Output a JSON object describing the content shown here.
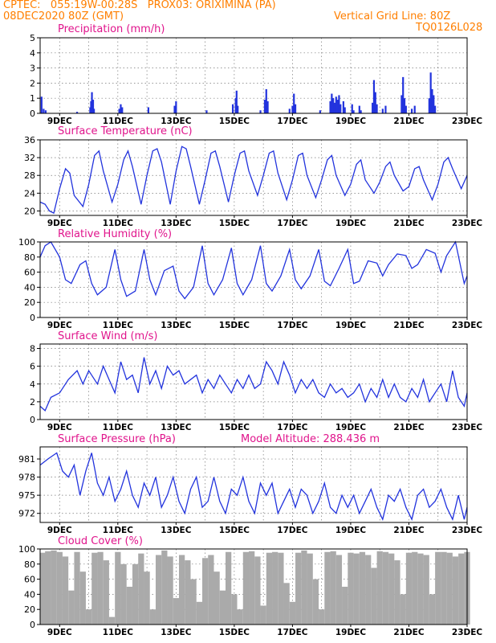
{
  "header": {
    "line1": "CPTEC:   055:19W-00:28S   PROX03: ORIXIMINA (PA)",
    "line2": "08DEC2020 80Z (GMT)",
    "grid_note": "Vertical Grid Line: 80Z",
    "code": "TQ0126L028",
    "model_altitude": "Model Altitude: 288.436 m"
  },
  "colors": {
    "header": "#ff7f00",
    "title": "#e0148c",
    "series": "#2233dd",
    "cloud": "#aaaaaa",
    "grid": "#777777"
  },
  "x_axis": {
    "day_labels": [
      "9DEC",
      "11DEC",
      "13DEC",
      "15DEC",
      "17DEC",
      "19DEC",
      "21DEC",
      "23DEC"
    ],
    "label_days": [
      9,
      11,
      13,
      15,
      17,
      19,
      21,
      23
    ],
    "grid_days": [
      9,
      10,
      11,
      12,
      13,
      14,
      15,
      16,
      17,
      18,
      19,
      20,
      21,
      22
    ],
    "start_day": 8.33,
    "end_day": 23.0
  },
  "chart_data": [
    {
      "type": "bar",
      "title": "Precipitation (mm/h)",
      "ylim": [
        0,
        5
      ],
      "yticks": [
        0,
        1,
        2,
        3,
        4,
        5
      ],
      "x": [
        8.38,
        8.45,
        8.52,
        9.6,
        10.05,
        10.08,
        10.11,
        10.15,
        10.18,
        11.05,
        11.1,
        11.15,
        12.05,
        12.95,
        13.0,
        14.05,
        14.95,
        15.05,
        15.08,
        15.12,
        15.9,
        16.05,
        16.1,
        16.15,
        16.9,
        17.0,
        17.05,
        17.1,
        17.95,
        18.3,
        18.35,
        18.4,
        18.45,
        18.5,
        18.55,
        18.6,
        18.65,
        18.75,
        18.8,
        19.05,
        19.1,
        19.3,
        19.35,
        19.75,
        19.8,
        19.85,
        19.9,
        20.1,
        20.2,
        20.75,
        20.8,
        20.85,
        20.9,
        21.1,
        21.2,
        21.7,
        21.75,
        21.8,
        21.85,
        21.9
      ],
      "values": [
        1.1,
        0.3,
        0.2,
        0.1,
        0.4,
        0.8,
        1.4,
        0.9,
        0.3,
        0.3,
        0.6,
        0.4,
        0.4,
        0.5,
        0.8,
        0.2,
        0.6,
        1.0,
        1.5,
        0.5,
        0.2,
        0.9,
        1.6,
        0.8,
        0.3,
        0.5,
        1.3,
        0.6,
        0.2,
        0.8,
        1.3,
        1.0,
        0.7,
        1.1,
        0.9,
        1.2,
        0.6,
        0.8,
        0.4,
        0.6,
        0.2,
        0.5,
        0.2,
        0.7,
        2.2,
        1.4,
        0.6,
        0.3,
        0.5,
        1.2,
        2.4,
        1.0,
        0.5,
        0.3,
        0.5,
        1.0,
        2.7,
        1.6,
        1.2,
        0.5
      ]
    },
    {
      "type": "line",
      "title": "Surface Temperature (nC)",
      "ylim": [
        19,
        36
      ],
      "yticks": [
        20,
        24,
        28,
        32,
        36
      ],
      "x": [
        8.33,
        8.5,
        8.65,
        8.8,
        9.0,
        9.2,
        9.35,
        9.5,
        9.8,
        10.0,
        10.2,
        10.35,
        10.5,
        10.8,
        11.0,
        11.2,
        11.35,
        11.5,
        11.8,
        12.0,
        12.2,
        12.35,
        12.5,
        12.8,
        13.0,
        13.2,
        13.35,
        13.5,
        13.8,
        14.0,
        14.2,
        14.35,
        14.5,
        14.8,
        15.0,
        15.2,
        15.35,
        15.5,
        15.8,
        16.0,
        16.2,
        16.35,
        16.5,
        16.8,
        17.0,
        17.2,
        17.35,
        17.5,
        17.8,
        18.0,
        18.2,
        18.35,
        18.5,
        18.8,
        19.0,
        19.2,
        19.35,
        19.5,
        19.8,
        20.0,
        20.2,
        20.35,
        20.5,
        20.8,
        21.0,
        21.2,
        21.35,
        21.5,
        21.8,
        22.0,
        22.2,
        22.35,
        22.5,
        22.8,
        23.0
      ],
      "values": [
        22,
        21.5,
        20.0,
        19.5,
        25,
        29.5,
        28.5,
        23.5,
        21,
        26,
        32.5,
        33.5,
        29,
        22,
        26,
        31.5,
        33.5,
        30,
        21.5,
        28,
        33.5,
        34,
        31,
        21.5,
        29,
        34.5,
        34,
        30,
        21.5,
        27,
        33,
        33.5,
        30,
        22,
        28,
        33,
        33.5,
        29,
        23.5,
        28,
        33,
        33.5,
        28.5,
        22.5,
        27,
        32.5,
        33,
        28,
        23,
        27,
        31.5,
        32.5,
        28,
        23.5,
        26,
        30.5,
        31.5,
        27,
        24,
        26.5,
        30,
        31,
        28,
        24.5,
        25.5,
        29.5,
        30,
        27,
        22.5,
        26,
        31,
        32,
        29.5,
        25,
        28
      ]
    },
    {
      "type": "line",
      "title": "Relative Humidity (%)",
      "ylim": [
        0,
        100
      ],
      "yticks": [
        0,
        20,
        40,
        60,
        80,
        100
      ],
      "x": [
        8.33,
        8.5,
        8.7,
        9.0,
        9.2,
        9.4,
        9.7,
        9.9,
        10.1,
        10.3,
        10.6,
        10.9,
        11.1,
        11.3,
        11.6,
        11.9,
        12.1,
        12.3,
        12.6,
        12.9,
        13.1,
        13.3,
        13.6,
        13.9,
        14.1,
        14.3,
        14.6,
        14.9,
        15.1,
        15.3,
        15.6,
        15.9,
        16.1,
        16.3,
        16.6,
        16.9,
        17.1,
        17.3,
        17.6,
        17.9,
        18.1,
        18.3,
        18.6,
        18.9,
        19.1,
        19.3,
        19.6,
        19.9,
        20.1,
        20.3,
        20.6,
        20.9,
        21.1,
        21.3,
        21.6,
        21.9,
        22.1,
        22.3,
        22.6,
        22.9,
        23.0
      ],
      "values": [
        80,
        95,
        100,
        80,
        50,
        45,
        70,
        75,
        45,
        30,
        40,
        90,
        50,
        28,
        35,
        90,
        50,
        30,
        62,
        68,
        35,
        25,
        40,
        95,
        45,
        30,
        50,
        92,
        45,
        30,
        50,
        95,
        45,
        35,
        55,
        90,
        50,
        38,
        55,
        90,
        48,
        42,
        65,
        90,
        45,
        48,
        75,
        72,
        55,
        70,
        84,
        82,
        65,
        70,
        90,
        85,
        60,
        82,
        100,
        45,
        55
      ]
    },
    {
      "type": "line",
      "title": "Surface Wind (m/s)",
      "ylim": [
        0,
        8.5
      ],
      "yticks": [
        0,
        2,
        4,
        6,
        8
      ],
      "x": [
        8.33,
        8.5,
        8.7,
        9.0,
        9.3,
        9.6,
        9.8,
        10.0,
        10.3,
        10.5,
        10.7,
        10.9,
        11.1,
        11.3,
        11.5,
        11.7,
        11.9,
        12.1,
        12.3,
        12.5,
        12.7,
        12.9,
        13.1,
        13.3,
        13.5,
        13.7,
        13.9,
        14.1,
        14.3,
        14.5,
        14.7,
        14.9,
        15.1,
        15.3,
        15.5,
        15.7,
        15.9,
        16.1,
        16.3,
        16.5,
        16.7,
        16.9,
        17.1,
        17.3,
        17.5,
        17.7,
        17.9,
        18.1,
        18.3,
        18.5,
        18.7,
        18.9,
        19.1,
        19.3,
        19.5,
        19.7,
        19.9,
        20.1,
        20.3,
        20.5,
        20.7,
        20.9,
        21.1,
        21.3,
        21.5,
        21.7,
        21.9,
        22.1,
        22.3,
        22.5,
        22.7,
        22.9,
        23.0
      ],
      "values": [
        1.5,
        1.0,
        2.5,
        3.0,
        4.5,
        5.5,
        4.0,
        5.5,
        4.0,
        6.0,
        4.5,
        3.0,
        6.5,
        4.5,
        5.0,
        3.0,
        7.0,
        4.0,
        5.5,
        3.5,
        6.0,
        5.0,
        5.5,
        4.0,
        4.5,
        5.0,
        3.0,
        4.5,
        3.5,
        5.0,
        4.0,
        3.0,
        4.5,
        3.5,
        5.0,
        3.5,
        4.0,
        6.5,
        5.5,
        4.0,
        6.5,
        5.0,
        3.0,
        4.5,
        3.5,
        4.5,
        3.0,
        2.5,
        4.0,
        3.0,
        3.5,
        2.5,
        3.0,
        4.0,
        2.0,
        3.5,
        2.5,
        4.5,
        2.5,
        4.0,
        2.5,
        2.0,
        3.5,
        2.5,
        4.5,
        2.0,
        3.0,
        4.0,
        2.0,
        5.5,
        2.5,
        1.5,
        3.0
      ]
    },
    {
      "type": "line",
      "title": "Surface Pressure (hPa)",
      "ylim": [
        970.5,
        983
      ],
      "yticks": [
        972,
        975,
        978,
        981
      ],
      "x": [
        8.33,
        8.6,
        8.9,
        9.1,
        9.3,
        9.5,
        9.7,
        9.9,
        10.1,
        10.3,
        10.5,
        10.7,
        10.9,
        11.1,
        11.3,
        11.5,
        11.7,
        11.9,
        12.1,
        12.3,
        12.5,
        12.7,
        12.9,
        13.1,
        13.3,
        13.5,
        13.7,
        13.9,
        14.1,
        14.3,
        14.5,
        14.7,
        14.9,
        15.1,
        15.3,
        15.5,
        15.7,
        15.9,
        16.1,
        16.3,
        16.5,
        16.7,
        16.9,
        17.1,
        17.3,
        17.5,
        17.7,
        17.9,
        18.1,
        18.3,
        18.5,
        18.7,
        18.9,
        19.1,
        19.3,
        19.5,
        19.7,
        19.9,
        20.1,
        20.3,
        20.5,
        20.7,
        20.9,
        21.1,
        21.3,
        21.5,
        21.7,
        21.9,
        22.1,
        22.3,
        22.5,
        22.7,
        22.9,
        23.0
      ],
      "values": [
        980,
        981,
        982,
        979,
        978,
        980,
        975,
        979,
        982,
        977,
        975,
        978,
        974,
        976,
        979,
        975,
        973,
        977,
        975,
        978,
        973,
        975,
        978,
        974,
        972,
        976,
        978,
        973,
        974,
        978,
        974,
        972,
        976,
        975,
        978,
        974,
        972,
        977,
        975,
        977,
        972,
        974,
        976,
        973,
        976,
        975,
        972,
        974,
        977,
        973,
        972,
        975,
        973,
        975,
        972,
        974,
        976,
        973,
        971,
        975,
        974,
        976,
        973,
        971,
        975,
        976,
        973,
        974,
        976,
        973,
        971,
        975,
        971,
        973
      ]
    },
    {
      "type": "bar",
      "title": "Cloud Cover (%)",
      "ylim": [
        0,
        100
      ],
      "yticks": [
        0,
        20,
        40,
        60,
        80,
        100
      ],
      "x": [
        8.4,
        8.6,
        8.8,
        9.0,
        9.2,
        9.4,
        9.6,
        9.8,
        10.0,
        10.2,
        10.4,
        10.6,
        10.8,
        11.0,
        11.2,
        11.4,
        11.6,
        11.8,
        12.0,
        12.2,
        12.4,
        12.6,
        12.8,
        13.0,
        13.2,
        13.4,
        13.6,
        13.8,
        14.0,
        14.2,
        14.4,
        14.6,
        14.8,
        15.0,
        15.2,
        15.4,
        15.6,
        15.8,
        16.0,
        16.2,
        16.4,
        16.6,
        16.8,
        17.0,
        17.2,
        17.4,
        17.6,
        17.8,
        18.0,
        18.2,
        18.4,
        18.6,
        18.8,
        19.0,
        19.2,
        19.4,
        19.6,
        19.8,
        20.0,
        20.2,
        20.4,
        20.6,
        20.8,
        21.0,
        21.2,
        21.4,
        21.6,
        21.8,
        22.0,
        22.2,
        22.4,
        22.6,
        22.8,
        23.0
      ],
      "values": [
        95,
        97,
        98,
        96,
        90,
        45,
        96,
        70,
        20,
        95,
        96,
        85,
        10,
        96,
        80,
        50,
        80,
        94,
        70,
        20,
        92,
        98,
        90,
        35,
        92,
        85,
        60,
        30,
        88,
        92,
        70,
        45,
        96,
        40,
        20,
        96,
        97,
        90,
        25,
        95,
        96,
        95,
        55,
        30,
        95,
        98,
        94,
        60,
        20,
        96,
        97,
        92,
        50,
        95,
        94,
        96,
        92,
        75,
        97,
        96,
        94,
        85,
        40,
        95,
        96,
        94,
        92,
        40,
        96,
        96,
        95,
        90,
        94,
        96
      ]
    }
  ]
}
